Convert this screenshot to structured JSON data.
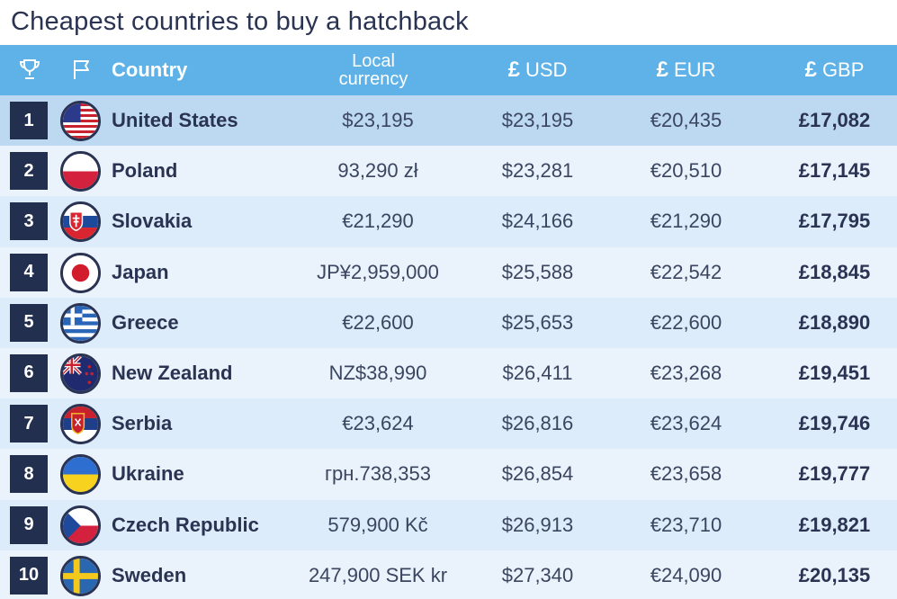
{
  "title": "Cheapest countries to buy a hatchback",
  "header": {
    "country": "Country",
    "local_line1": "Local",
    "local_line2": "currency",
    "currency_symbol": "£",
    "usd": "USD",
    "eur": "EUR",
    "gbp": "GBP",
    "trophy_icon": "trophy-icon",
    "flag_icon": "flag-icon"
  },
  "rows": [
    {
      "rank": "1",
      "country": "United States",
      "local": "$23,195",
      "usd": "$23,195",
      "eur": "€20,435",
      "gbp": "£17,082"
    },
    {
      "rank": "2",
      "country": "Poland",
      "local": "93,290 zł",
      "usd": "$23,281",
      "eur": "€20,510",
      "gbp": "£17,145"
    },
    {
      "rank": "3",
      "country": "Slovakia",
      "local": "€21,290",
      "usd": "$24,166",
      "eur": "€21,290",
      "gbp": "£17,795"
    },
    {
      "rank": "4",
      "country": "Japan",
      "local": "JP¥2,959,000",
      "usd": "$25,588",
      "eur": "€22,542",
      "gbp": "£18,845"
    },
    {
      "rank": "5",
      "country": "Greece",
      "local": "€22,600",
      "usd": "$25,653",
      "eur": "€22,600",
      "gbp": "£18,890"
    },
    {
      "rank": "6",
      "country": "New Zealand",
      "local": "NZ$38,990",
      "usd": "$26,411",
      "eur": "€23,268",
      "gbp": "£19,451"
    },
    {
      "rank": "7",
      "country": "Serbia",
      "local": "€23,624",
      "usd": "$26,816",
      "eur": "€23,624",
      "gbp": "£19,746"
    },
    {
      "rank": "8",
      "country": "Ukraine",
      "local": "грн.738,353",
      "usd": "$26,854",
      "eur": "€23,658",
      "gbp": "£19,777"
    },
    {
      "rank": "9",
      "country": "Czech Republic",
      "local": "579,900 Kč",
      "usd": "$26,913",
      "eur": "€23,710",
      "gbp": "£19,821"
    },
    {
      "rank": "10",
      "country": "Sweden",
      "local": "247,900 SEK kr",
      "usd": "$27,340",
      "eur": "€24,090",
      "gbp": "£20,135"
    }
  ],
  "colors": {
    "header_bg": "#5fb2e8",
    "rank_bg": "#232f4f",
    "row_highlight": "#bcd9f1",
    "row_odd": "#dcecfa",
    "row_even": "#eaf3fc"
  }
}
